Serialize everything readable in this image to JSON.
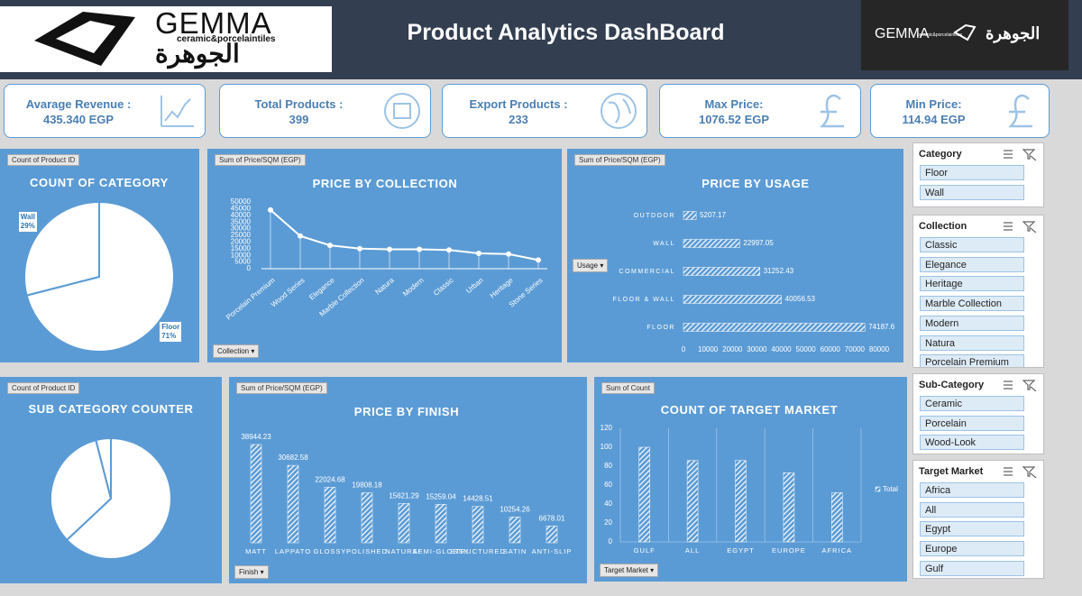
{
  "header": {
    "title": "Product Analytics DashBoard",
    "logo_left": {
      "brand": "GEMMA",
      "tagline": "ceramic&porcelaintiles",
      "arabic": "الجوهرة"
    },
    "logo_right": {
      "brand": "GEMMA",
      "tagline": "ceramic&porcelaintiles",
      "arabic": "الجوهرة"
    }
  },
  "kpis": [
    {
      "label": "Avarage Revenue :",
      "value": "435.340 EGP"
    },
    {
      "label": "Total Products :",
      "value": "399"
    },
    {
      "label": "Export Products :",
      "value": "233"
    },
    {
      "label": "Max Price:",
      "value": "1076.52 EGP"
    },
    {
      "label": "Min Price:",
      "value": "114.94 EGP"
    }
  ],
  "chart_data": [
    {
      "type": "pie",
      "tag": "Count of Product ID",
      "title": "COUNT OF CATEGORY",
      "categories": [
        "Floor",
        "Wall"
      ],
      "values": [
        71,
        29
      ],
      "value_labels": [
        "71%",
        "29%"
      ],
      "color": "#ffffff"
    },
    {
      "type": "line",
      "tag": "Sum of Price/SQM (EGP)",
      "title": "PRICE BY COLLECTION",
      "filter": "Collection",
      "categories": [
        "Porcelain Premium",
        "Wood Series",
        "Elegance",
        "Marble Collection",
        "Natura",
        "Modern",
        "Classic",
        "Urban",
        "Heritage",
        "Stone Series"
      ],
      "values": [
        44000,
        24500,
        17500,
        15000,
        14500,
        14500,
        14000,
        11500,
        11000,
        6500
      ],
      "ylim": [
        0,
        50000
      ],
      "yticks": [
        0,
        5000,
        10000,
        15000,
        20000,
        25000,
        30000,
        35000,
        40000,
        45000,
        50000
      ],
      "color": "#ffffff"
    },
    {
      "type": "bar",
      "orientation": "horizontal",
      "tag": "Sum of Price/SQM (EGP)",
      "title": "PRICE BY USAGE",
      "filter": "Usage",
      "categories": [
        "OUTDOOR",
        "WALL",
        "COMMERCIAL",
        "FLOOR & WALL",
        "FLOOR"
      ],
      "values": [
        5207.17,
        22997.05,
        31252.43,
        40056.53,
        74187.6
      ],
      "xlim": [
        0,
        80000
      ],
      "xticks": [
        0,
        10000,
        20000,
        30000,
        40000,
        50000,
        60000,
        70000,
        80000
      ],
      "data_labels": true,
      "color": "#ffffff"
    },
    {
      "type": "pie",
      "tag": "Count of Product ID",
      "title": "SUB CATEGORY COUNTER",
      "values": [
        63,
        33,
        4
      ],
      "color": "#ffffff"
    },
    {
      "type": "bar",
      "tag": "Sum of Price/SQM (EGP)",
      "title": "PRICE BY FINISH",
      "filter": "Finish",
      "categories": [
        "MATT",
        "LAPPATO",
        "GLOSSY",
        "POLISHED",
        "NATURAL",
        "SEMI-GLOSSY",
        "STRUCTURED",
        "SATIN",
        "ANTI-SLIP"
      ],
      "values": [
        38944.23,
        30682.58,
        22024.68,
        19808.18,
        15621.29,
        15259.04,
        14428.51,
        10254.26,
        6678.01
      ],
      "data_labels": true,
      "color": "#ffffff"
    },
    {
      "type": "bar",
      "tag": "Sum of Count",
      "title": "COUNT OF TARGET MARKET",
      "filter": "Target Market",
      "categories": [
        "GULF",
        "ALL",
        "EGYPT",
        "EUROPE",
        "AFRICA"
      ],
      "series": [
        {
          "name": "Total",
          "color": "#ffffff",
          "values": [
            100,
            86,
            86,
            73,
            52
          ]
        }
      ],
      "ylim": [
        0,
        120
      ],
      "yticks": [
        0,
        20,
        40,
        60,
        80,
        100,
        120
      ],
      "grid": true,
      "legend": "right"
    }
  ],
  "slicers": [
    {
      "title": "Category",
      "items": [
        "Floor",
        "Wall"
      ]
    },
    {
      "title": "Collection",
      "items": [
        "Classic",
        "Elegance",
        "Heritage",
        "Marble Collection",
        "Modern",
        "Natura",
        "Porcelain Premium"
      ]
    },
    {
      "title": "Sub-Category",
      "items": [
        "Ceramic",
        "Porcelain",
        "Wood-Look"
      ]
    },
    {
      "title": "Target Market",
      "items": [
        "Africa",
        "All",
        "Egypt",
        "Europe",
        "Gulf"
      ]
    }
  ]
}
